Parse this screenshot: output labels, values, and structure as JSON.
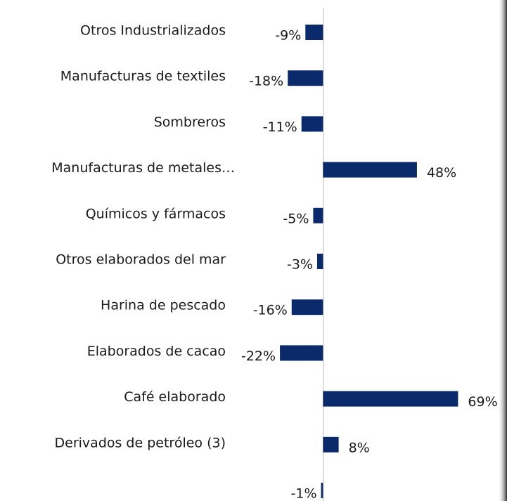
{
  "chart_data": {
    "type": "hbar",
    "categories": [
      "Otros Industrializados",
      "Manufacturas de textiles",
      "Sombreros",
      "Manufacturas de metales…",
      "Químicos y fármacos",
      "Otros elaborados del mar",
      "Harina de pescado",
      "Elaborados de cacao",
      "Café elaborado",
      "Derivados de petróleo (3)",
      null
    ],
    "values": [
      -9,
      -18,
      -11,
      48,
      -5,
      -3,
      -16,
      -22,
      69,
      8,
      -1
    ],
    "value_labels": [
      "-9%",
      "-18%",
      "-11%",
      "48%",
      "-5%",
      "-3%",
      "-16%",
      "-22%",
      "69%",
      "8%",
      "-1%"
    ],
    "color": "#0b2a6b",
    "xlim": [
      -165,
      94
    ]
  }
}
